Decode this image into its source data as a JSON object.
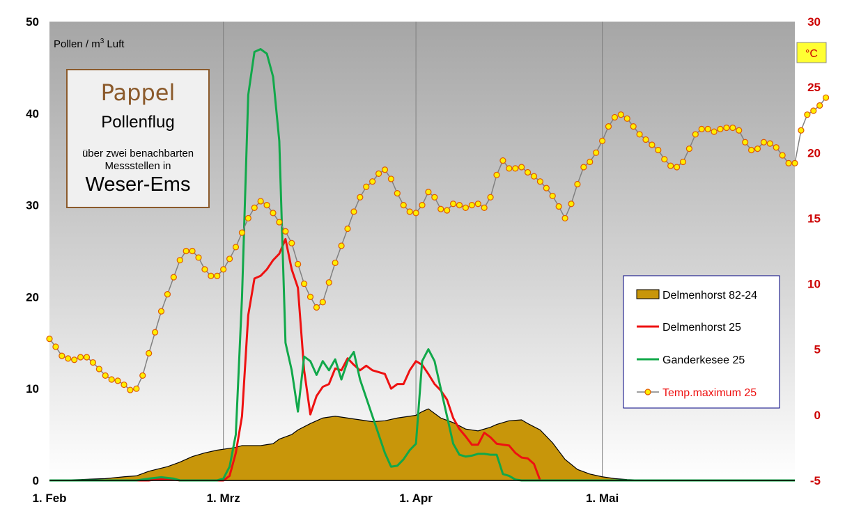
{
  "chart_data": {
    "type": "line",
    "title_box": {
      "title": "Pappel",
      "subtitle": "Pollenflug",
      "line1": "über  zwei benachbarten",
      "line2": "Messstellen  in",
      "region": "Weser-Ems"
    },
    "ylabel_left_text": "Pollen  / m",
    "ylabel_left_sup": "3",
    "ylabel_left_rest": " Luft",
    "ylabel_right": "°C",
    "ylim_left": [
      0,
      50
    ],
    "yticks_left": [
      "0",
      "10",
      "20",
      "30",
      "40",
      "50"
    ],
    "ylim_right": [
      -5,
      30
    ],
    "yticks_right": [
      "-5",
      "0",
      "5",
      "10",
      "15",
      "20",
      "25",
      "30"
    ],
    "x_domain_days": [
      1,
      121
    ],
    "xticks": [
      {
        "label": "1. Feb",
        "day": 1
      },
      {
        "label": "1. Mrz",
        "day": 29
      },
      {
        "label": "1. Apr",
        "day": 60
      },
      {
        "label": "1. Mai",
        "day": 90
      }
    ],
    "legend": {
      "placement": "center-right",
      "entries": [
        {
          "label": "Delmenhorst 82-24",
          "kind": "area",
          "color": "#c8960a"
        },
        {
          "label": "Delmenhorst 25",
          "kind": "line",
          "color": "#ee1111"
        },
        {
          "label": "Ganderkesee 25",
          "kind": "line",
          "color": "#11a84a"
        },
        {
          "label": "Temp.maximum 25",
          "kind": "marker-line",
          "color": "#ffee00",
          "text_color": "#ee1111"
        }
      ]
    },
    "series": [
      {
        "name": "Delmenhorst 82-24",
        "axis": "left",
        "points": [
          [
            1,
            0
          ],
          [
            6,
            0.1
          ],
          [
            10,
            0.2
          ],
          [
            13,
            0.4
          ],
          [
            15,
            0.5
          ],
          [
            17,
            1
          ],
          [
            20,
            1.5
          ],
          [
            22,
            2
          ],
          [
            24,
            2.6
          ],
          [
            26,
            3
          ],
          [
            28,
            3.3
          ],
          [
            29,
            3.4
          ],
          [
            31,
            3.6
          ],
          [
            32,
            3.8
          ],
          [
            35,
            3.8
          ],
          [
            37,
            4
          ],
          [
            38,
            4.5
          ],
          [
            40,
            5
          ],
          [
            41,
            5.5
          ],
          [
            43,
            6.2
          ],
          [
            45,
            6.8
          ],
          [
            47,
            7
          ],
          [
            49,
            6.8
          ],
          [
            51,
            6.6
          ],
          [
            53,
            6.4
          ],
          [
            55,
            6.5
          ],
          [
            57,
            6.8
          ],
          [
            59,
            7
          ],
          [
            60,
            7.1
          ],
          [
            61,
            7.5
          ],
          [
            62,
            7.8
          ],
          [
            64,
            6.8
          ],
          [
            66,
            6.3
          ],
          [
            68,
            5.6
          ],
          [
            70,
            5.4
          ],
          [
            72,
            5.8
          ],
          [
            73,
            6.1
          ],
          [
            75,
            6.5
          ],
          [
            77,
            6.6
          ],
          [
            78,
            6.2
          ],
          [
            80,
            5.5
          ],
          [
            82,
            4.1
          ],
          [
            84,
            2.3
          ],
          [
            86,
            1.2
          ],
          [
            88,
            0.7
          ],
          [
            90,
            0.4
          ],
          [
            92,
            0.2
          ],
          [
            94,
            0.1
          ],
          [
            96,
            0.05
          ],
          [
            100,
            0
          ]
        ]
      },
      {
        "name": "Delmenhorst 25",
        "axis": "left",
        "points": [
          [
            1,
            0
          ],
          [
            17,
            0
          ],
          [
            18,
            0.1
          ],
          [
            20,
            0.2
          ],
          [
            21,
            0.1
          ],
          [
            22,
            0
          ],
          [
            29,
            0
          ],
          [
            30,
            0.5
          ],
          [
            31,
            3
          ],
          [
            32,
            7
          ],
          [
            33,
            18
          ],
          [
            34,
            22
          ],
          [
            35,
            22.3
          ],
          [
            36,
            23
          ],
          [
            37,
            24
          ],
          [
            38,
            24.7
          ],
          [
            39,
            26.3
          ],
          [
            40,
            23
          ],
          [
            41,
            21
          ],
          [
            42,
            12
          ],
          [
            43,
            7.2
          ],
          [
            44,
            9.2
          ],
          [
            45,
            10.2
          ],
          [
            46,
            10.5
          ],
          [
            47,
            12.2
          ],
          [
            48,
            12
          ],
          [
            49,
            13.3
          ],
          [
            50,
            12.6
          ],
          [
            51,
            12
          ],
          [
            52,
            12.5
          ],
          [
            53,
            12
          ],
          [
            54,
            11.8
          ],
          [
            55,
            11.6
          ],
          [
            56,
            10
          ],
          [
            57,
            10.5
          ],
          [
            58,
            10.5
          ],
          [
            59,
            12
          ],
          [
            60,
            13
          ],
          [
            61,
            12.6
          ],
          [
            62,
            11.6
          ],
          [
            63,
            10.5
          ],
          [
            64,
            9.8
          ],
          [
            65,
            8.8
          ],
          [
            66,
            6.8
          ],
          [
            67,
            5.6
          ],
          [
            68,
            4.8
          ],
          [
            69,
            3.9
          ],
          [
            70,
            3.9
          ],
          [
            71,
            5.2
          ],
          [
            72,
            4.7
          ],
          [
            73,
            4
          ],
          [
            74,
            3.9
          ],
          [
            75,
            3.8
          ],
          [
            76,
            3
          ],
          [
            77,
            2.5
          ],
          [
            78,
            2.4
          ],
          [
            79,
            1.8
          ],
          [
            80,
            0
          ],
          [
            121,
            0
          ]
        ]
      },
      {
        "name": "Ganderkesee 25",
        "axis": "left",
        "points": [
          [
            1,
            0
          ],
          [
            15,
            0
          ],
          [
            17,
            0.2
          ],
          [
            19,
            0.35
          ],
          [
            21,
            0.2
          ],
          [
            22,
            0
          ],
          [
            28,
            0
          ],
          [
            29,
            0.2
          ],
          [
            30,
            1.5
          ],
          [
            31,
            5
          ],
          [
            32,
            20
          ],
          [
            33,
            42
          ],
          [
            34,
            46.7
          ],
          [
            35,
            47
          ],
          [
            36,
            46.5
          ],
          [
            37,
            44
          ],
          [
            38,
            37
          ],
          [
            39,
            15
          ],
          [
            40,
            12
          ],
          [
            41,
            7.5
          ],
          [
            42,
            13.5
          ],
          [
            43,
            13
          ],
          [
            44,
            11.5
          ],
          [
            45,
            13
          ],
          [
            46,
            12
          ],
          [
            47,
            13.2
          ],
          [
            48,
            11
          ],
          [
            49,
            13
          ],
          [
            50,
            14
          ],
          [
            51,
            11
          ],
          [
            52,
            9
          ],
          [
            53,
            7
          ],
          [
            54,
            5
          ],
          [
            55,
            3
          ],
          [
            56,
            1.5
          ],
          [
            57,
            1.6
          ],
          [
            58,
            2.3
          ],
          [
            59,
            3.3
          ],
          [
            60,
            4
          ],
          [
            61,
            13
          ],
          [
            62,
            14.3
          ],
          [
            63,
            13
          ],
          [
            64,
            10
          ],
          [
            65,
            7
          ],
          [
            66,
            4
          ],
          [
            67,
            2.8
          ],
          [
            68,
            2.6
          ],
          [
            69,
            2.7
          ],
          [
            70,
            2.9
          ],
          [
            71,
            2.9
          ],
          [
            72,
            2.8
          ],
          [
            73,
            2.8
          ],
          [
            74,
            0.7
          ],
          [
            75,
            0.5
          ],
          [
            76,
            0.1
          ],
          [
            77,
            0
          ],
          [
            121,
            0
          ]
        ]
      },
      {
        "name": "Temp.maximum 25",
        "axis": "right",
        "values": [
          5.8,
          5.2,
          4.5,
          4.3,
          4.2,
          4.4,
          4.4,
          4,
          3.5,
          3,
          2.7,
          2.6,
          2.3,
          1.9,
          2,
          3,
          4.7,
          6.3,
          7.9,
          9.2,
          10.5,
          11.8,
          12.5,
          12.5,
          12,
          11.1,
          10.6,
          10.6,
          11.1,
          11.9,
          12.8,
          13.9,
          15,
          15.8,
          16.3,
          16,
          15.4,
          14.7,
          14,
          13.1,
          11.5,
          10,
          9,
          8.2,
          8.6,
          10.1,
          11.6,
          12.9,
          14.2,
          15.5,
          16.6,
          17.4,
          17.8,
          18.4,
          18.7,
          18,
          16.9,
          16,
          15.5,
          15.4,
          16,
          17,
          16.6,
          15.7,
          15.6,
          16.1,
          16,
          15.8,
          16,
          16.1,
          15.8,
          16.6,
          18.3,
          19.4,
          18.8,
          18.8,
          18.9,
          18.5,
          18.2,
          17.8,
          17.3,
          16.7,
          15.9,
          15,
          16.1,
          17.6,
          18.9,
          19.3,
          20,
          20.9,
          22,
          22.7,
          22.9,
          22.6,
          22,
          21.4,
          21,
          20.6,
          20.2,
          19.5,
          19,
          18.9,
          19.3,
          20.3,
          21.4,
          21.8,
          21.8,
          21.6,
          21.8,
          21.9,
          21.9,
          21.7,
          20.8,
          20.2,
          20.3,
          20.8,
          20.7,
          20.4,
          19.8,
          19.2,
          19.2,
          21.7,
          22.9,
          23.2,
          23.6,
          24.2
        ]
      }
    ]
  }
}
